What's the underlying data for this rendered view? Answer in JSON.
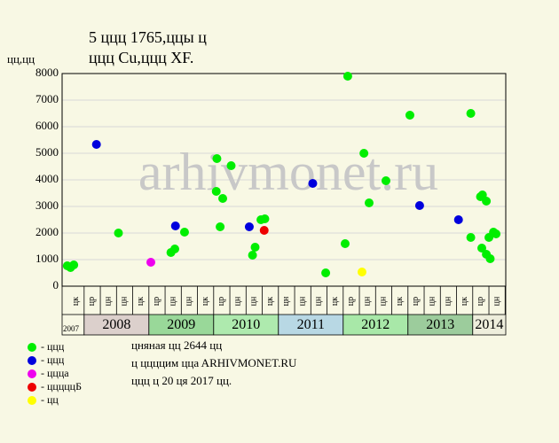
{
  "chart_data": {
    "type": "scatter",
    "title": [
      "5 ццц 1765,ццы ц",
      "ццц Cu,ццц XF."
    ],
    "y_label": "цц,цц",
    "watermark": "arhivmonet.ru",
    "ylim": [
      0,
      8000
    ],
    "yticks": [
      0,
      1000,
      2000,
      3000,
      4000,
      5000,
      6000,
      7000,
      8000
    ],
    "grid": true,
    "xlim": [
      2007.66,
      2014.51
    ],
    "xticks": [
      {
        "value": 2007.875,
        "label": "цк"
      },
      {
        "value": 2008.125,
        "label": "цр"
      },
      {
        "value": 2008.375,
        "label": "цн"
      },
      {
        "value": 2008.625,
        "label": "цн"
      },
      {
        "value": 2008.875,
        "label": "цк"
      },
      {
        "value": 2009.125,
        "label": "цр"
      },
      {
        "value": 2009.375,
        "label": "цн"
      },
      {
        "value": 2009.625,
        "label": "цн"
      },
      {
        "value": 2009.875,
        "label": "цк"
      },
      {
        "value": 2010.125,
        "label": "цр"
      },
      {
        "value": 2010.375,
        "label": "цн"
      },
      {
        "value": 2010.625,
        "label": "цн"
      },
      {
        "value": 2010.875,
        "label": "цк"
      },
      {
        "value": 2011.125,
        "label": "цн"
      },
      {
        "value": 2011.375,
        "label": "цн"
      },
      {
        "value": 2011.625,
        "label": "цн"
      },
      {
        "value": 2011.875,
        "label": "цк"
      },
      {
        "value": 2012.125,
        "label": "цр"
      },
      {
        "value": 2012.375,
        "label": "цн"
      },
      {
        "value": 2012.625,
        "label": "цн"
      },
      {
        "value": 2012.875,
        "label": "цк"
      },
      {
        "value": 2013.125,
        "label": "цр"
      },
      {
        "value": 2013.375,
        "label": "цн"
      },
      {
        "value": 2013.625,
        "label": "цн"
      },
      {
        "value": 2013.875,
        "label": "цк"
      },
      {
        "value": 2014.125,
        "label": "цр"
      },
      {
        "value": 2014.375,
        "label": "цн"
      }
    ],
    "year_bands": {
      "labels": [
        "2007",
        "2008",
        "2009",
        "2010",
        "2011",
        "2012",
        "2013",
        "2014"
      ],
      "colors": [
        "#f8f8e4",
        "#dcd0cc",
        "#99d899",
        "#aeeaae",
        "#b8d8e4",
        "#a8e8a8",
        "#9ccc9c",
        "#eeeedc"
      ]
    },
    "series": [
      {
        "name": "- ццц",
        "color": "#00ee00",
        "x": [
          2007.74,
          2007.79,
          2007.84,
          2008.53,
          2009.34,
          2009.4,
          2009.55,
          2010.05,
          2010.04,
          2010.14,
          2010.1,
          2010.27,
          2010.6,
          2010.64,
          2010.73,
          2010.79,
          2011.73,
          2012.03,
          2012.07,
          2012.32,
          2012.4,
          2012.66,
          2013.03,
          2013.97,
          2013.97,
          2014.12,
          2014.15,
          2014.21,
          2014.25,
          2014.14,
          2014.21,
          2014.27,
          2014.32,
          2014.36
        ],
        "values": [
          767,
          700,
          800,
          2000,
          1267,
          1400,
          2033,
          4800,
          3567,
          3300,
          2233,
          4533,
          1167,
          1467,
          2500,
          2533,
          500,
          1600,
          7900,
          5000,
          3133,
          3967,
          6433,
          6500,
          1833,
          3367,
          3433,
          3200,
          1833,
          1433,
          1200,
          1033,
          2033,
          1967
        ]
      },
      {
        "name": "- ццц",
        "color": "#0000dd",
        "x": [
          2008.19,
          2009.41,
          2010.55,
          2011.53,
          2013.18,
          2013.78
        ],
        "values": [
          5333,
          2267,
          2233,
          3867,
          3033,
          2500
        ]
      },
      {
        "name": "- ццца",
        "color": "#ee00ee",
        "x": [
          2009.03
        ],
        "values": [
          900
        ]
      },
      {
        "name": "- цццццБ",
        "color": "#ee0000",
        "x": [
          2010.78
        ],
        "values": [
          2100
        ]
      },
      {
        "name": "- цц",
        "color": "#ffff00",
        "x": [
          2012.29
        ],
        "values": [
          533
        ]
      }
    ],
    "notes": [
      "цняная цц 2644 цц",
      "ц ццццим ццa ARHIVMONET.RU",
      "ццц ц 20 ця 2017 цц."
    ]
  }
}
